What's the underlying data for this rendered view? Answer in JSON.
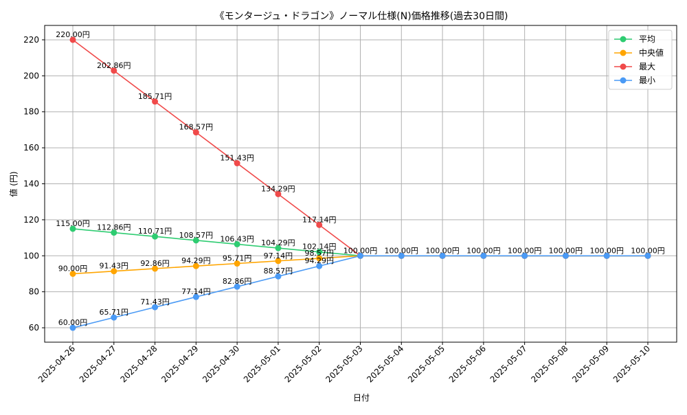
{
  "chart_data": {
    "type": "line",
    "title": "《モンタージュ・ドラゴン》ノーマル仕様(N)価格推移(過去30日間)",
    "xlabel": "日付",
    "ylabel": "値 (円)",
    "x": [
      "2025-04-26",
      "2025-04-27",
      "2025-04-28",
      "2025-04-29",
      "2025-04-30",
      "2025-05-01",
      "2025-05-02",
      "2025-05-03",
      "2025-05-04",
      "2025-05-05",
      "2025-05-06",
      "2025-05-07",
      "2025-05-08",
      "2025-05-09",
      "2025-05-10"
    ],
    "ylim": [
      52,
      228
    ],
    "yticks": [
      60,
      80,
      100,
      120,
      140,
      160,
      180,
      200,
      220
    ],
    "grid": true,
    "legend_position": "top-right",
    "value_suffix": "円",
    "series": [
      {
        "name": "平均",
        "color": "#2ecc71",
        "label_count": 7,
        "values": [
          115.0,
          112.86,
          110.71,
          108.57,
          106.43,
          104.29,
          102.14,
          100.0,
          100.0,
          100.0,
          100.0,
          100.0,
          100.0,
          100.0,
          100.0
        ]
      },
      {
        "name": "中央値",
        "color": "#ffa500",
        "label_count": 7,
        "values": [
          90.0,
          91.43,
          92.86,
          94.29,
          95.71,
          97.14,
          98.57,
          100.0,
          100.0,
          100.0,
          100.0,
          100.0,
          100.0,
          100.0,
          100.0
        ]
      },
      {
        "name": "最大",
        "color": "#f04a4a",
        "label_count": 7,
        "values": [
          220.0,
          202.86,
          185.71,
          168.57,
          151.43,
          134.29,
          117.14,
          100.0,
          100.0,
          100.0,
          100.0,
          100.0,
          100.0,
          100.0,
          100.0
        ]
      },
      {
        "name": "最小",
        "color": "#4a9af5",
        "label_count": 15,
        "values": [
          60.0,
          65.71,
          71.43,
          77.14,
          82.86,
          88.57,
          94.29,
          100.0,
          100.0,
          100.0,
          100.0,
          100.0,
          100.0,
          100.0,
          100.0
        ]
      }
    ]
  }
}
